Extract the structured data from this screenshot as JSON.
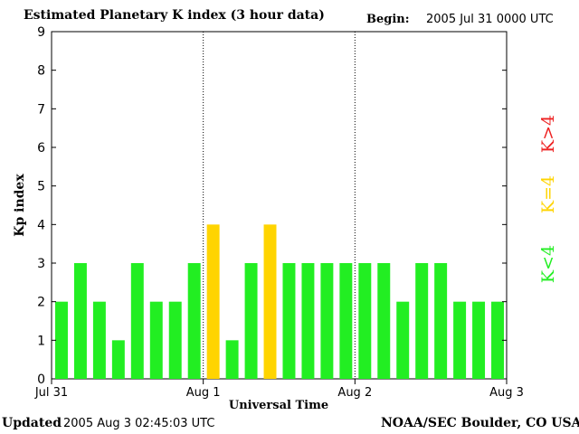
{
  "header": {
    "title": "Estimated Planetary K index (3 hour data)",
    "begin_label": "Begin:",
    "begin_value": "2005 Jul 31 0000 UTC"
  },
  "footer": {
    "updated_label": "Updated",
    "updated_value": "2005 Aug  3 02:45:03 UTC",
    "credit": "NOAA/SEC Boulder, CO USA"
  },
  "legend": {
    "high": "K>4",
    "equal": "K=4",
    "low": "K<4"
  },
  "colors": {
    "low": "#22ee22",
    "equal": "#ffd400",
    "high": "#ee2222"
  },
  "chart_data": {
    "type": "bar",
    "title": "Estimated Planetary K index (3 hour data)",
    "xlabel": "Universal Time",
    "ylabel": "Kp index",
    "ylim": [
      0,
      9
    ],
    "yticks": [
      "0",
      "1",
      "2",
      "3",
      "4",
      "5",
      "6",
      "7",
      "8",
      "9"
    ],
    "xticks": [
      "Jul 31",
      "Aug 1",
      "Aug 2",
      "Aug 3"
    ],
    "values": [
      2,
      3,
      2,
      1,
      3,
      2,
      2,
      3,
      4,
      1,
      3,
      4,
      3,
      3,
      3,
      3,
      3,
      3,
      2,
      3,
      3,
      2,
      2,
      2
    ]
  }
}
